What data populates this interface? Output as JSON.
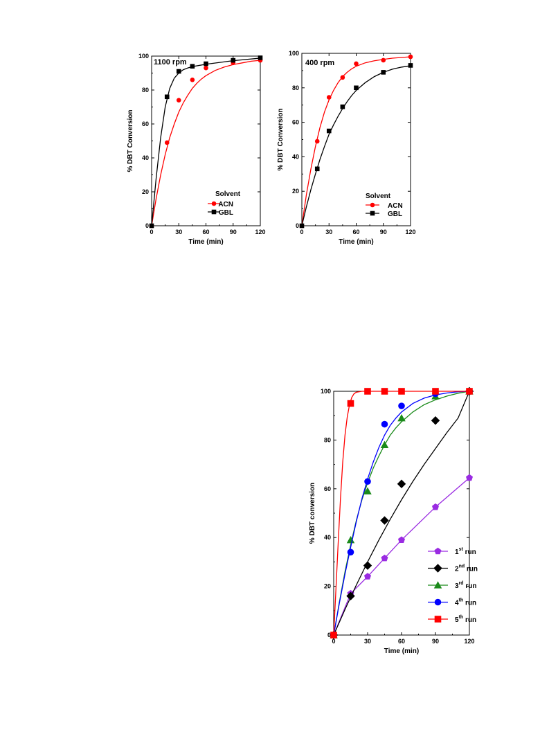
{
  "chart_data": [
    {
      "type": "scatter",
      "title": "",
      "annotation": "1100 rpm",
      "xlabel": "Time (min)",
      "ylabel": "%  DBT Conversion",
      "xlim": [
        0,
        120
      ],
      "ylim": [
        0,
        100
      ],
      "xticks": [
        0,
        30,
        60,
        90,
        120
      ],
      "yticks": [
        0,
        20,
        40,
        60,
        80,
        100
      ],
      "grid": false,
      "legend_title": "Solvent",
      "legend_position": "bottom-right",
      "series": [
        {
          "name": "ACN",
          "color": "#ff0000",
          "marker": "circle",
          "x": [
            0,
            17,
            30,
            45,
            60,
            90,
            120
          ],
          "y": [
            0,
            49,
            74,
            86,
            93,
            96,
            97.5
          ],
          "fit": [
            [
              0,
              0
            ],
            [
              5,
              16
            ],
            [
              10,
              30
            ],
            [
              15,
              42
            ],
            [
              20,
              52
            ],
            [
              25,
              60
            ],
            [
              30,
              67
            ],
            [
              35,
              72.5
            ],
            [
              40,
              77
            ],
            [
              45,
              81
            ],
            [
              50,
              84
            ],
            [
              55,
              86.5
            ],
            [
              60,
              88.5
            ],
            [
              70,
              91.5
            ],
            [
              80,
              93.5
            ],
            [
              90,
              95
            ],
            [
              100,
              96
            ],
            [
              110,
              97
            ],
            [
              120,
              97.5
            ]
          ]
        },
        {
          "name": "GBL",
          "color": "#000000",
          "marker": "square",
          "x": [
            0,
            17,
            30,
            45,
            60,
            90,
            120
          ],
          "y": [
            0,
            76,
            91,
            94,
            95.5,
            97.5,
            99
          ],
          "fit": [
            [
              0,
              0
            ],
            [
              5,
              28
            ],
            [
              10,
              52
            ],
            [
              15,
              70
            ],
            [
              20,
              81
            ],
            [
              25,
              87
            ],
            [
              30,
              90
            ],
            [
              35,
              92
            ],
            [
              40,
              93
            ],
            [
              45,
              93.8
            ],
            [
              60,
              95.2
            ],
            [
              90,
              97.3
            ],
            [
              120,
              98.8
            ]
          ]
        }
      ]
    },
    {
      "type": "scatter",
      "title": "",
      "annotation": "400 rpm",
      "xlabel": "Time (min)",
      "ylabel": "%  DBT Conversion",
      "xlim": [
        0,
        120
      ],
      "ylim": [
        0,
        100
      ],
      "xticks": [
        0,
        30,
        60,
        90,
        120
      ],
      "yticks": [
        0,
        20,
        40,
        60,
        80,
        100
      ],
      "grid": false,
      "legend_title": "Solvent",
      "legend_position": "bottom-right",
      "series": [
        {
          "name": "ACN",
          "color": "#ff0000",
          "marker": "circle",
          "x": [
            0,
            17,
            30,
            45,
            60,
            90,
            120
          ],
          "y": [
            0,
            49,
            74.5,
            86,
            94,
            96,
            98
          ],
          "fit": [
            [
              0,
              0
            ],
            [
              5,
              18
            ],
            [
              10,
              33
            ],
            [
              15,
              46
            ],
            [
              20,
              57
            ],
            [
              25,
              66
            ],
            [
              30,
              73
            ],
            [
              35,
              78.5
            ],
            [
              40,
              83
            ],
            [
              45,
              86.5
            ],
            [
              50,
              89
            ],
            [
              55,
              91
            ],
            [
              60,
              92.5
            ],
            [
              70,
              94.5
            ],
            [
              80,
              95.7
            ],
            [
              90,
              96.5
            ],
            [
              100,
              97.2
            ],
            [
              110,
              97.6
            ],
            [
              120,
              98
            ]
          ]
        },
        {
          "name": "GBL",
          "color": "#000000",
          "marker": "square",
          "x": [
            0,
            17,
            30,
            45,
            60,
            90,
            120
          ],
          "y": [
            0,
            33,
            55,
            69,
            80,
            89,
            93
          ],
          "fit": [
            [
              0,
              0
            ],
            [
              5,
              11
            ],
            [
              10,
              21
            ],
            [
              15,
              30
            ],
            [
              20,
              38.5
            ],
            [
              25,
              46
            ],
            [
              30,
              53
            ],
            [
              35,
              58.5
            ],
            [
              40,
              63.5
            ],
            [
              45,
              68
            ],
            [
              50,
              72
            ],
            [
              55,
              75.5
            ],
            [
              60,
              78.5
            ],
            [
              70,
              83
            ],
            [
              80,
              86.5
            ],
            [
              90,
              89
            ],
            [
              100,
              90.8
            ],
            [
              110,
              92
            ],
            [
              120,
              92.8
            ]
          ]
        }
      ]
    },
    {
      "type": "scatter",
      "title": "",
      "xlabel": "Time (min)",
      "ylabel": "% DBT conversion",
      "xlim": [
        0,
        120
      ],
      "ylim": [
        0,
        100
      ],
      "xticks": [
        0,
        30,
        60,
        90,
        120
      ],
      "yticks": [
        0,
        20,
        40,
        60,
        80,
        100
      ],
      "grid": false,
      "legend_position": "bottom-right",
      "series": [
        {
          "name": "1",
          "name_sup": "st",
          "name_suffix": " run",
          "color": "#9a2be2",
          "marker": "pentagon",
          "x": [
            0,
            15,
            30,
            45,
            60,
            90,
            120
          ],
          "y": [
            0,
            17,
            24,
            31.5,
            39,
            52.5,
            64.5
          ],
          "fit": [
            [
              0,
              0
            ],
            [
              15,
              17
            ],
            [
              30,
              24
            ],
            [
              45,
              31.5
            ],
            [
              60,
              39
            ],
            [
              90,
              52.5
            ],
            [
              120,
              64.5
            ]
          ]
        },
        {
          "name": "2",
          "name_sup": "nd",
          "name_suffix": " run",
          "color": "#000000",
          "marker": "diamond",
          "x": [
            0,
            15,
            30,
            45,
            60,
            90,
            120
          ],
          "y": [
            0,
            16,
            28.5,
            47,
            62,
            88,
            100
          ],
          "fit": [
            [
              0,
              0
            ],
            [
              10,
              10.5
            ],
            [
              20,
              20.5
            ],
            [
              30,
              30
            ],
            [
              40,
              39
            ],
            [
              50,
              47.5
            ],
            [
              60,
              55.5
            ],
            [
              70,
              63
            ],
            [
              80,
              70
            ],
            [
              90,
              76.5
            ],
            [
              100,
              83
            ],
            [
              110,
              89
            ],
            [
              120,
              100
            ]
          ]
        },
        {
          "name": "3",
          "name_sup": "rd",
          "name_suffix": " run",
          "color": "#1a8a1a",
          "marker": "triangle",
          "x": [
            0,
            15,
            30,
            45,
            60,
            90,
            120
          ],
          "y": [
            0,
            39,
            59,
            78,
            89,
            98,
            100
          ],
          "fit": [
            [
              0,
              0
            ],
            [
              5,
              13.5
            ],
            [
              10,
              26
            ],
            [
              15,
              37
            ],
            [
              20,
              47
            ],
            [
              25,
              55.5
            ],
            [
              30,
              62.5
            ],
            [
              35,
              68.5
            ],
            [
              40,
              73.5
            ],
            [
              45,
              78
            ],
            [
              50,
              82
            ],
            [
              55,
              85
            ],
            [
              60,
              87.5
            ],
            [
              70,
              91.5
            ],
            [
              80,
              94.5
            ],
            [
              90,
              96.5
            ],
            [
              100,
              98
            ],
            [
              110,
              99.2
            ],
            [
              120,
              100
            ]
          ]
        },
        {
          "name": "4",
          "name_sup": "th",
          "name_suffix": " run",
          "color": "#0000ff",
          "marker": "circle",
          "x": [
            0,
            15,
            30,
            45,
            60,
            90,
            120
          ],
          "y": [
            0,
            34,
            63,
            86.5,
            94,
            99,
            100
          ],
          "fit": [
            [
              0,
              0
            ],
            [
              5,
              13
            ],
            [
              10,
              25
            ],
            [
              15,
              36
            ],
            [
              20,
              46.5
            ],
            [
              25,
              56
            ],
            [
              30,
              64
            ],
            [
              35,
              71
            ],
            [
              40,
              77
            ],
            [
              45,
              82
            ],
            [
              50,
              86
            ],
            [
              55,
              89
            ],
            [
              60,
              91.5
            ],
            [
              70,
              95
            ],
            [
              80,
              97.2
            ],
            [
              90,
              98.5
            ],
            [
              100,
              99.3
            ],
            [
              110,
              99.8
            ],
            [
              120,
              100
            ]
          ]
        },
        {
          "name": "5",
          "name_sup": "th",
          "name_suffix": " run",
          "color": "#ff0000",
          "marker": "square",
          "x": [
            0,
            15,
            30,
            45,
            60,
            90,
            120
          ],
          "y": [
            0,
            95,
            100,
            100,
            100,
            100,
            100
          ],
          "fit": [
            [
              0,
              0
            ],
            [
              2,
              19
            ],
            [
              4,
              38
            ],
            [
              6,
              56
            ],
            [
              8,
              71
            ],
            [
              10,
              82
            ],
            [
              12,
              89.5
            ],
            [
              14,
              94.5
            ],
            [
              16,
              97.5
            ],
            [
              18,
              99
            ],
            [
              20,
              99.6
            ],
            [
              25,
              100
            ],
            [
              120,
              100
            ]
          ]
        }
      ]
    }
  ]
}
